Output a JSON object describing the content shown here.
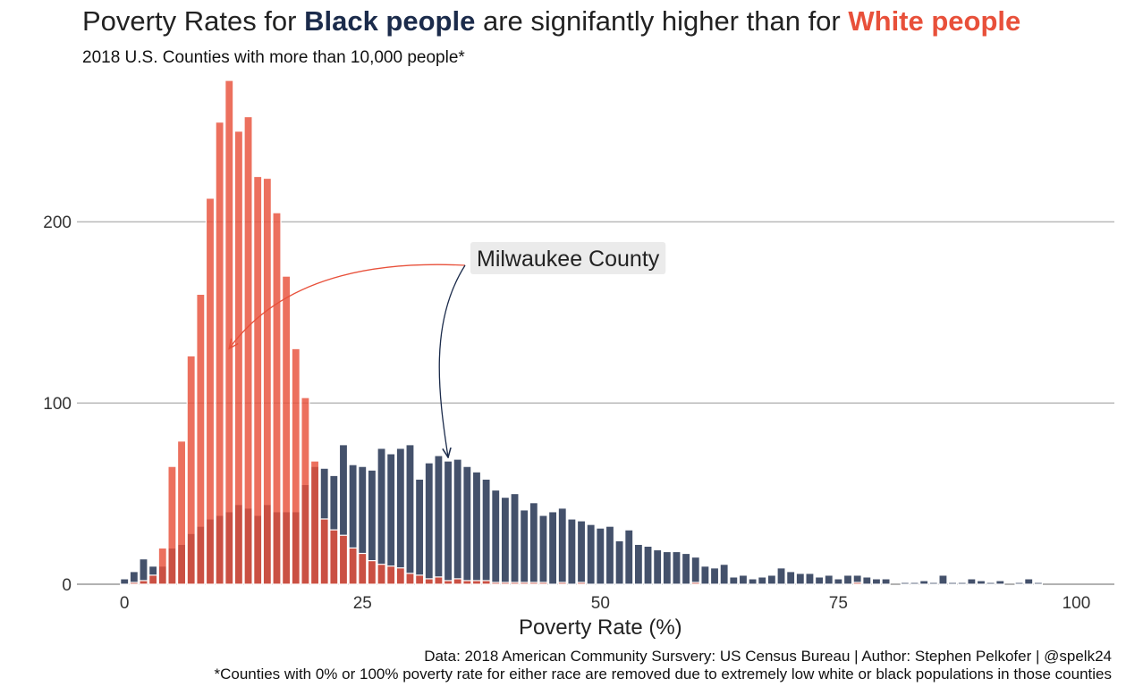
{
  "title": {
    "part1": "Poverty Rates for ",
    "black": "Black people",
    "part2": " are signifantly higher than for ",
    "white": "White people"
  },
  "subtitle": "2018 U.S. Counties with more than 10,000 people*",
  "caption": {
    "line1": "Data: 2018 American Community Sursvery: US Census Bureau | Author: Stephen Pelkofer | @spelk24",
    "line2": "*Counties with 0% or 100% poverty rate for either race are removed due to extremely low white or black populations in those counties"
  },
  "colors": {
    "black_series": "#1b2b4b",
    "white_series": "#e8503a",
    "grid": "#9a9a9a"
  },
  "chart_data": {
    "type": "bar",
    "xlabel": "Poverty Rate (%)",
    "ylabel": "",
    "xlim": [
      -5,
      104
    ],
    "ylim": [
      0,
      278
    ],
    "bin_width": 1,
    "x_ticks": [
      0,
      25,
      50,
      75,
      100
    ],
    "y_ticks": [
      0,
      100,
      200
    ],
    "grid": "horizontal",
    "annotation": {
      "text": "Milwaukee County",
      "black_rate": 34,
      "white_rate": 11
    },
    "series": [
      {
        "name": "Black people",
        "x": [
          0,
          1,
          2,
          3,
          4,
          5,
          6,
          7,
          8,
          9,
          10,
          11,
          12,
          13,
          14,
          15,
          16,
          17,
          18,
          19,
          20,
          21,
          22,
          23,
          24,
          25,
          26,
          27,
          28,
          29,
          30,
          31,
          32,
          33,
          34,
          35,
          36,
          37,
          38,
          39,
          40,
          41,
          42,
          43,
          44,
          45,
          46,
          47,
          48,
          49,
          50,
          51,
          52,
          53,
          54,
          55,
          56,
          57,
          58,
          59,
          60,
          61,
          62,
          63,
          64,
          65,
          66,
          67,
          68,
          69,
          70,
          71,
          72,
          73,
          74,
          75,
          76,
          77,
          78,
          79,
          80,
          81,
          82,
          83,
          84,
          85,
          86,
          87,
          88,
          89,
          90,
          91,
          92,
          93,
          94,
          95,
          96
        ],
        "values": [
          3,
          7,
          14,
          10,
          10,
          20,
          22,
          28,
          32,
          36,
          38,
          40,
          44,
          42,
          38,
          44,
          40,
          40,
          40,
          55,
          65,
          64,
          60,
          77,
          66,
          65,
          63,
          75,
          72,
          75,
          77,
          58,
          67,
          71,
          68,
          69,
          65,
          62,
          58,
          52,
          48,
          50,
          41,
          45,
          38,
          40,
          42,
          36,
          35,
          33,
          31,
          32,
          24,
          30,
          22,
          21,
          19,
          18,
          18,
          17,
          15,
          10,
          9,
          11,
          4,
          5,
          3,
          4,
          5,
          9,
          7,
          6,
          6,
          4,
          5,
          3,
          5,
          5,
          4,
          3,
          3,
          0,
          1,
          1,
          2,
          1,
          5,
          1,
          1,
          3,
          2,
          1,
          2,
          0,
          1,
          3,
          1
        ]
      },
      {
        "name": "White people",
        "x": [
          0,
          1,
          2,
          3,
          4,
          5,
          6,
          7,
          8,
          9,
          10,
          11,
          12,
          13,
          14,
          15,
          16,
          17,
          18,
          19,
          20,
          21,
          22,
          23,
          24,
          25,
          26,
          27,
          28,
          29,
          30,
          31,
          32,
          33,
          34,
          35,
          36,
          37,
          38,
          39,
          40,
          41,
          42,
          43,
          44,
          45,
          46,
          47,
          48,
          49,
          50,
          51,
          52,
          53,
          54,
          55,
          56,
          57,
          58,
          59,
          60,
          61,
          62,
          63,
          64,
          65,
          66,
          67,
          68,
          69,
          70,
          71,
          72,
          73,
          74,
          75,
          76,
          77,
          78,
          79,
          80
        ],
        "values": [
          0,
          1,
          2,
          5,
          20,
          65,
          79,
          126,
          160,
          213,
          255,
          278,
          250,
          258,
          225,
          224,
          205,
          170,
          130,
          103,
          68,
          36,
          30,
          27,
          20,
          17,
          13,
          11,
          10,
          9,
          6,
          5,
          3,
          4,
          2,
          3,
          2,
          2,
          2,
          1,
          1,
          1,
          1,
          1,
          1,
          0,
          1,
          0,
          1,
          0,
          0,
          0,
          0,
          0,
          0,
          0,
          0,
          0,
          0,
          0,
          1,
          0,
          0,
          0,
          0,
          0,
          0,
          0,
          0,
          0,
          0,
          0,
          0,
          0,
          0,
          0,
          0,
          1,
          0,
          0,
          0
        ]
      }
    ]
  }
}
